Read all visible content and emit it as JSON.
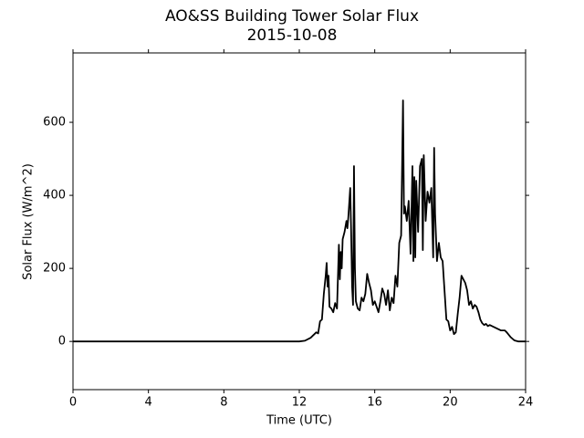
{
  "chart_data": {
    "type": "line",
    "title": "AO&SS Building Tower Solar Flux",
    "subtitle": "2015-10-08",
    "x_label": "Time (UTC)",
    "y_label": "Solar Flux (W/m^2)",
    "color": "#000000",
    "x": [
      0,
      12.0,
      12.3,
      12.6,
      12.9,
      13.0,
      13.1,
      13.2,
      13.3,
      13.4,
      13.45,
      13.5,
      13.55,
      13.6,
      13.7,
      13.8,
      13.9,
      14.0,
      14.1,
      14.15,
      14.2,
      14.25,
      14.3,
      14.4,
      14.5,
      14.55,
      14.6,
      14.7,
      14.75,
      14.8,
      14.85,
      14.9,
      14.95,
      15.0,
      15.1,
      15.2,
      15.3,
      15.4,
      15.5,
      15.6,
      15.7,
      15.8,
      15.9,
      16.0,
      16.1,
      16.2,
      16.3,
      16.4,
      16.5,
      16.6,
      16.7,
      16.8,
      16.9,
      17.0,
      17.1,
      17.2,
      17.3,
      17.4,
      17.5,
      17.55,
      17.6,
      17.7,
      17.8,
      17.9,
      18.0,
      18.05,
      18.1,
      18.15,
      18.2,
      18.3,
      18.4,
      18.5,
      18.55,
      18.6,
      18.7,
      18.8,
      18.9,
      19.0,
      19.1,
      19.15,
      19.2,
      19.3,
      19.4,
      19.5,
      19.6,
      19.7,
      19.8,
      19.9,
      20.0,
      20.1,
      20.2,
      20.3,
      20.4,
      20.5,
      20.6,
      20.7,
      20.8,
      20.9,
      21.0,
      21.1,
      21.2,
      21.3,
      21.4,
      21.5,
      21.6,
      21.7,
      21.8,
      21.9,
      22.0,
      22.1,
      22.3,
      22.5,
      22.7,
      22.9,
      23.0,
      23.2,
      23.4,
      23.6,
      24.0
    ],
    "values": [
      0,
      0,
      2,
      10,
      25,
      22,
      55,
      60,
      130,
      180,
      215,
      150,
      180,
      95,
      90,
      80,
      105,
      90,
      265,
      170,
      245,
      200,
      280,
      300,
      330,
      310,
      340,
      420,
      300,
      150,
      100,
      480,
      200,
      110,
      90,
      85,
      120,
      110,
      130,
      185,
      160,
      140,
      100,
      110,
      95,
      80,
      110,
      145,
      130,
      100,
      140,
      85,
      120,
      105,
      180,
      150,
      270,
      290,
      660,
      350,
      370,
      330,
      385,
      240,
      480,
      220,
      450,
      230,
      440,
      300,
      480,
      500,
      250,
      510,
      330,
      410,
      380,
      420,
      230,
      530,
      350,
      220,
      270,
      230,
      220,
      140,
      60,
      55,
      30,
      40,
      20,
      25,
      75,
      120,
      180,
      170,
      160,
      140,
      100,
      110,
      90,
      100,
      95,
      80,
      60,
      50,
      45,
      48,
      42,
      45,
      40,
      35,
      30,
      30,
      25,
      12,
      3,
      0,
      0
    ],
    "xlim": [
      0,
      24
    ],
    "xticks": [
      0,
      4,
      8,
      12,
      16,
      20,
      24
    ],
    "ylim": [
      -132,
      790
    ],
    "yticks": [
      0,
      200,
      400,
      600
    ]
  }
}
